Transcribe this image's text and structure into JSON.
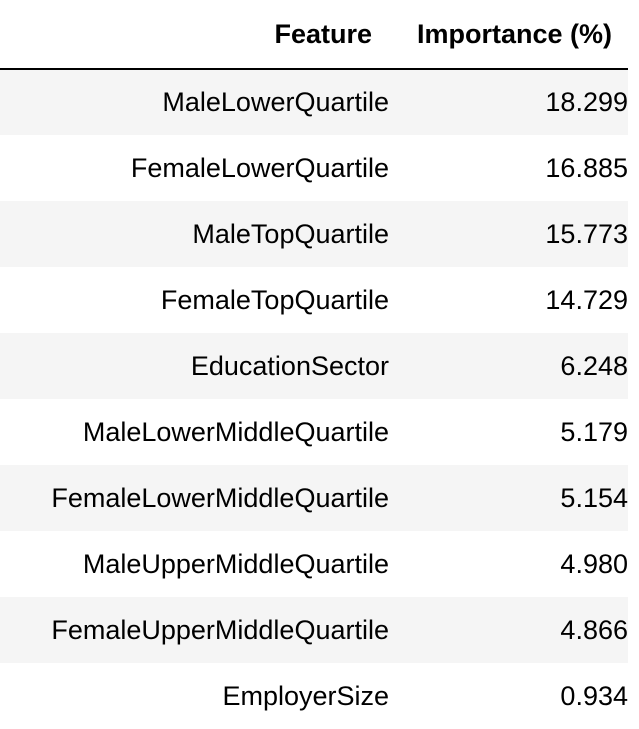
{
  "table": {
    "headers": {
      "feature": "Feature",
      "importance": "Importance (%)"
    },
    "rows": [
      {
        "feature": "MaleLowerQuartile",
        "importance": "18.299"
      },
      {
        "feature": "FemaleLowerQuartile",
        "importance": "16.885"
      },
      {
        "feature": "MaleTopQuartile",
        "importance": "15.773"
      },
      {
        "feature": "FemaleTopQuartile",
        "importance": "14.729"
      },
      {
        "feature": "EducationSector",
        "importance": "6.248"
      },
      {
        "feature": "MaleLowerMiddleQuartile",
        "importance": "5.179"
      },
      {
        "feature": "FemaleLowerMiddleQuartile",
        "importance": "5.154"
      },
      {
        "feature": "MaleUpperMiddleQuartile",
        "importance": "4.980"
      },
      {
        "feature": "FemaleUpperMiddleQuartile",
        "importance": "4.866"
      },
      {
        "feature": "EmployerSize",
        "importance": "0.934"
      }
    ]
  },
  "colors": {
    "stripe": "#f5f5f5",
    "background": "#ffffff",
    "text": "#000000",
    "header_rule": "#000000"
  }
}
